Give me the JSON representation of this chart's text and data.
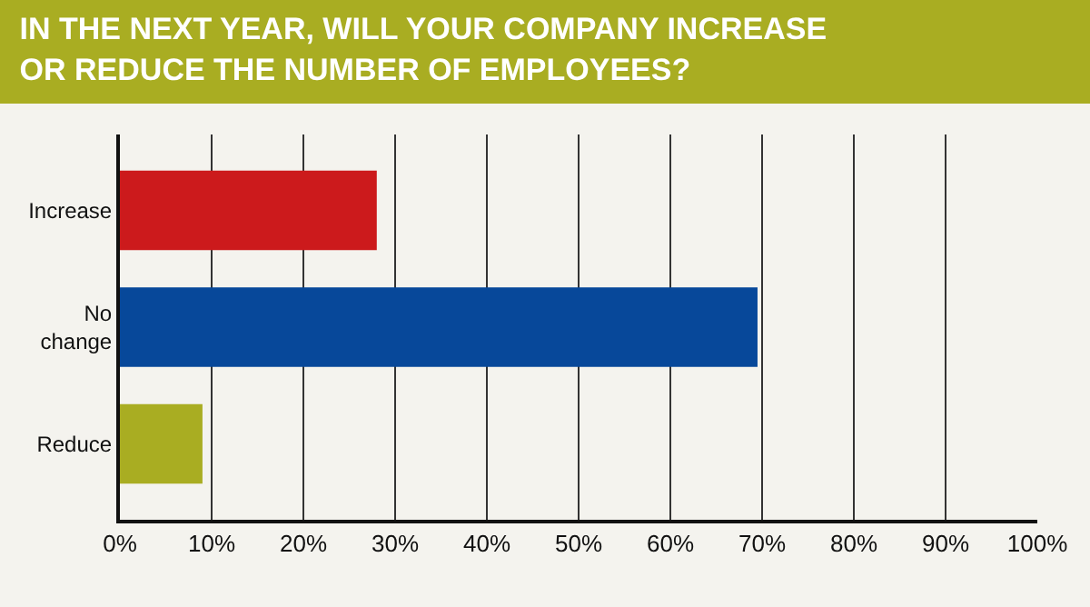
{
  "chart_data": {
    "type": "bar",
    "orientation": "horizontal",
    "title": "IN THE NEXT YEAR, WILL YOUR COMPANY INCREASE\nOR REDUCE THE NUMBER OF EMPLOYEES?",
    "categories": [
      "Increase",
      "No change",
      "Reduce"
    ],
    "values": [
      28,
      69.5,
      9
    ],
    "colors": [
      "#cc1a1c",
      "#07489a",
      "#a9ad22"
    ],
    "xlim": [
      0,
      100
    ],
    "xticks": [
      {
        "value": 0,
        "label": "0%"
      },
      {
        "value": 10,
        "label": "10%"
      },
      {
        "value": 20,
        "label": "20%"
      },
      {
        "value": 30,
        "label": "30%"
      },
      {
        "value": 40,
        "label": "40%"
      },
      {
        "value": 50,
        "label": "50%"
      },
      {
        "value": 60,
        "label": "60%"
      },
      {
        "value": 70,
        "label": "70%"
      },
      {
        "value": 80,
        "label": "80%"
      },
      {
        "value": 90,
        "label": "90%"
      },
      {
        "value": 100,
        "label": "100%"
      }
    ],
    "grid": "x",
    "legend": false
  }
}
